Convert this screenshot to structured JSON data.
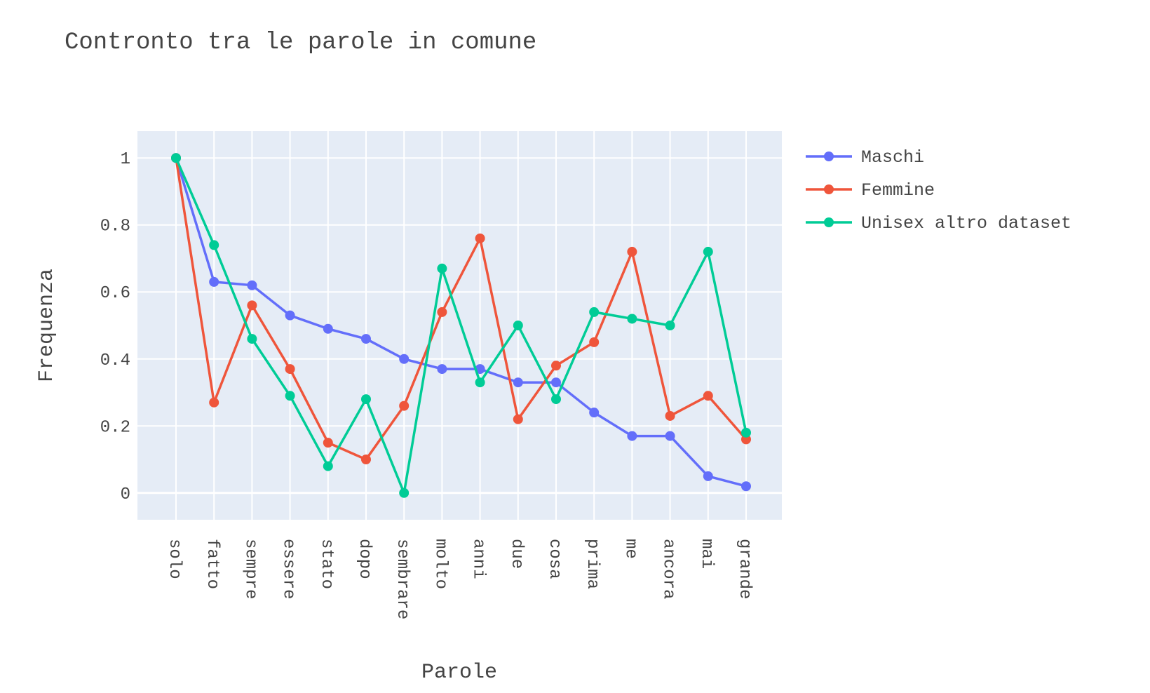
{
  "chart_data": {
    "type": "line",
    "title": "Contronto tra le parole in comune",
    "xlabel": "Parole",
    "ylabel": "Frequenza",
    "categories": [
      "solo",
      "fatto",
      "sempre",
      "essere",
      "stato",
      "dopo",
      "sembrare",
      "molto",
      "anni",
      "due",
      "cosa",
      "prima",
      "me",
      "ancora",
      "mai",
      "grande"
    ],
    "ylim": [
      -0.08,
      1.08
    ],
    "yticks": [
      0,
      0.2,
      0.4,
      0.6,
      0.8,
      1
    ],
    "ytick_labels": [
      "0",
      "0.2",
      "0.4",
      "0.6",
      "0.8",
      "1"
    ],
    "grid": true,
    "legend_position": "top-right, outside plot",
    "plot_background": "#e5ecf6",
    "series": [
      {
        "name": "Maschi",
        "color": "#636efa",
        "values": [
          1,
          0.63,
          0.62,
          0.53,
          0.49,
          0.46,
          0.4,
          0.37,
          0.37,
          0.33,
          0.33,
          0.24,
          0.17,
          0.17,
          0.05,
          0.02
        ]
      },
      {
        "name": "Femmine",
        "color": "#ef553b",
        "values": [
          1,
          0.27,
          0.56,
          0.37,
          0.15,
          0.1,
          0.26,
          0.54,
          0.76,
          0.22,
          0.38,
          0.45,
          0.72,
          0.23,
          0.29,
          0.16
        ]
      },
      {
        "name": "Unisex altro dataset",
        "color": "#00cc96",
        "values": [
          1,
          0.74,
          0.46,
          0.29,
          0.08,
          0.28,
          0.0,
          0.67,
          0.33,
          0.5,
          0.28,
          0.54,
          0.52,
          0.5,
          0.72,
          0.18
        ]
      }
    ]
  }
}
